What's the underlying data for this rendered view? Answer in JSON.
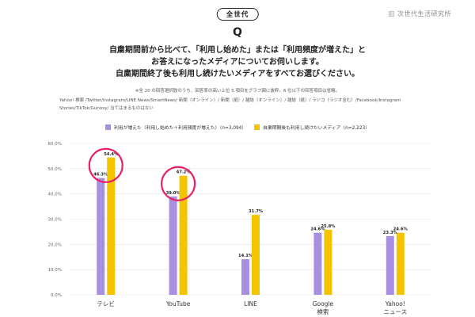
{
  "header": {
    "badge": "全世代",
    "brand": "次世代生活研究所",
    "q": "Q",
    "question_lines": [
      "自粛期間前から比べて、「利用し始めた」または「利用頻度が増えた」と",
      "お答えになったメディアについてお伺いします。",
      "自粛期間終了後も利用し続けたいメディアをすべてお選びください。"
    ],
    "note": "※全 20 の回答選択肢のうち、回答率の高い上位 5 項目をグラフ図に抜粋。6 位以下の回答項目は省略。",
    "media_list_lines": [
      "Yahoo! 検索 /Twitter/Instagram/LINE News/SmartNews/ 新聞（オンライン）/ 新聞（紙）/ 雑誌（オンライン）/ 雑誌（紙）/ ラジコ（ラジオ含む）/Facebook/Instagram",
      "Stories/TikTok/Gunosy/ 当てはまるものはない"
    ]
  },
  "colors": {
    "series1": "#a98fe0",
    "series2": "#f5c400",
    "highlight": "#e91e63",
    "grid": "#e4e4e4"
  },
  "chart_data": {
    "type": "bar",
    "categories": [
      "テレビ",
      "YouTube",
      "LINE",
      "Google\n検索",
      "Yahoo!\nニュース"
    ],
    "series": [
      {
        "name": "利用が増えた（利用し始めた＋利用頻度が増えた）（n=3,094）",
        "values": [
          46.3,
          39.0,
          14.1,
          24.6,
          23.3
        ],
        "labels": [
          "46.3%",
          "39.0%",
          "14.1%",
          "24.6%",
          "23.3%"
        ]
      },
      {
        "name": "自粛期間後も利用し続けたいメディア（n=2,223）",
        "values": [
          54.4,
          47.2,
          31.7,
          25.8,
          24.6
        ],
        "labels": [
          "54.4%",
          "47.2%",
          "31.7%",
          "25.8%",
          "24.6%"
        ]
      }
    ],
    "ylim": [
      0,
      60
    ],
    "yticks": [
      0,
      10,
      20,
      30,
      40,
      50,
      60
    ],
    "ytick_labels": [
      "0.0%",
      "10.0%",
      "20.0%",
      "30.0%",
      "40.0%",
      "50.0%",
      "60.0%"
    ],
    "grid": true,
    "legend_position": "top",
    "highlighted_categories": [
      0,
      1
    ]
  }
}
